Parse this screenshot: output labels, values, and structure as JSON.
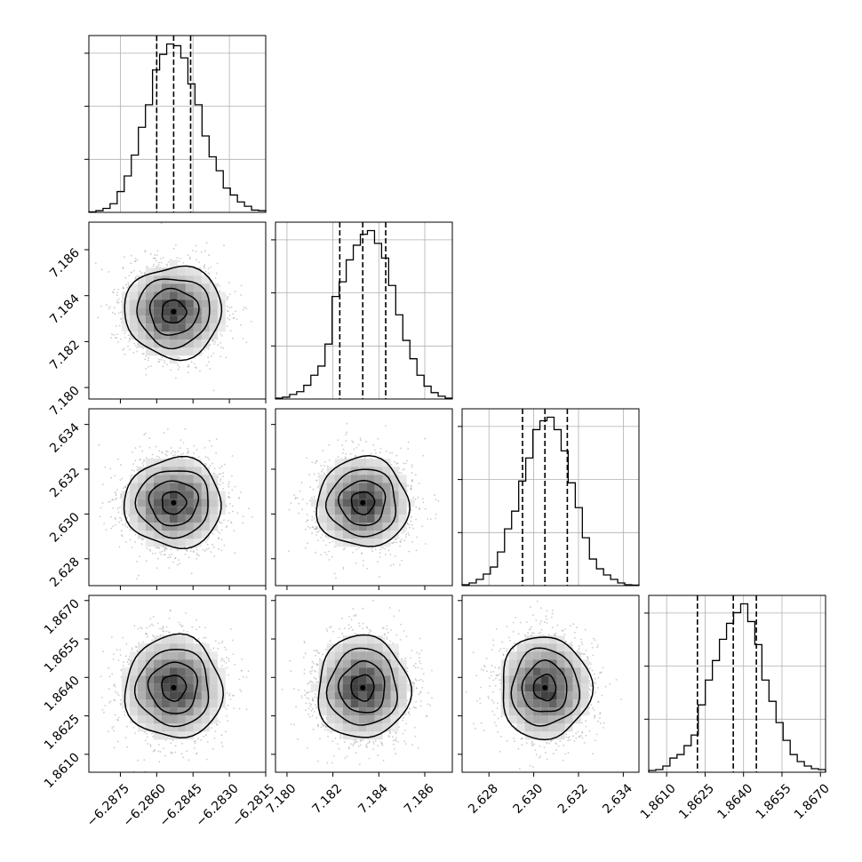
{
  "chart_data": {
    "type": "corner",
    "parameters": [
      {
        "name": "p0",
        "label": "",
        "range": [
          -6.2888,
          -6.2815
        ],
        "ticks": [
          "−6.2875",
          "−6.2860",
          "−6.2845",
          "−6.2830",
          "−6.2815"
        ],
        "tick_values": [
          -6.2875,
          -6.286,
          -6.2845,
          -6.283,
          -6.2815
        ],
        "median": -6.2853,
        "q16": -6.286,
        "q84": -6.2846,
        "sigma": 0.001,
        "hist_counts": [
          0.3,
          1.0,
          2.3,
          5.0,
          12.0,
          21.0,
          33.0,
          49.0,
          62.0,
          82.0,
          91.0,
          97.0,
          96.0,
          89.0,
          74.0,
          62.0,
          44.0,
          32.0,
          24.0,
          14.0,
          10.0,
          6.0,
          3.5,
          1.3,
          1.0
        ]
      },
      {
        "name": "p1",
        "label": "",
        "range": [
          7.1795,
          7.1872
        ],
        "ticks": [
          "7.180",
          "7.182",
          "7.184",
          "7.186"
        ],
        "tick_values": [
          7.18,
          7.182,
          7.184,
          7.186
        ],
        "median": 7.1833,
        "q16": 7.1823,
        "q84": 7.1843,
        "sigma": 0.001,
        "hist_counts": [
          0.5,
          1.0,
          2.5,
          4.0,
          7.5,
          13.0,
          18.0,
          30.0,
          56.0,
          64.0,
          76.0,
          84.0,
          90.0,
          92.0,
          85.0,
          77.0,
          62.0,
          46.0,
          32.0,
          22.0,
          13.0,
          7.0,
          3.5,
          1.5,
          0.5
        ]
      },
      {
        "name": "p2",
        "label": "",
        "range": [
          2.6268,
          2.6347
        ],
        "ticks": [
          "2.628",
          "2.630",
          "2.632",
          "2.634"
        ],
        "tick_values": [
          2.628,
          2.63,
          2.632,
          2.634
        ],
        "median": 2.6305,
        "q16": 2.6295,
        "q84": 2.6315,
        "sigma": 0.001,
        "hist_counts": [
          0.5,
          1.5,
          3.5,
          6.5,
          10.5,
          19.0,
          32.0,
          42.0,
          59.0,
          72.0,
          88.0,
          93.0,
          95.0,
          88.0,
          76.0,
          58.0,
          44.0,
          27.0,
          15.0,
          9.5,
          6.0,
          3.5,
          1.5,
          0.5,
          0.3
        ]
      },
      {
        "name": "p3",
        "label": "",
        "range": [
          1.8603,
          1.8672
        ],
        "ticks": [
          "1.8610",
          "1.8625",
          "1.8640",
          "1.8655",
          "1.8670"
        ],
        "tick_values": [
          1.861,
          1.8625,
          1.864,
          1.8655,
          1.867
        ],
        "median": 1.8636,
        "q16": 1.8622,
        "q84": 1.8645,
        "sigma": 0.001,
        "hist_counts": [
          1.0,
          1.5,
          3.5,
          8.0,
          10.0,
          15.0,
          21.0,
          38.0,
          52.0,
          63.0,
          75.0,
          84.0,
          90.0,
          95.0,
          85.0,
          72.0,
          52.0,
          40.0,
          28.0,
          18.0,
          10.0,
          6.0,
          3.5,
          2.0,
          1.5
        ]
      }
    ],
    "samples_per_panel": 2200,
    "contour_levels_sigma": [
      0.5,
      1.0,
      1.5,
      2.0
    ],
    "hist_ylim_fraction": 1.05,
    "grid": true,
    "quantile_lines": "dashed",
    "colors": {
      "line": "#000000",
      "scatter": "#9a9a9a",
      "grid": "#b0b0b0"
    }
  }
}
